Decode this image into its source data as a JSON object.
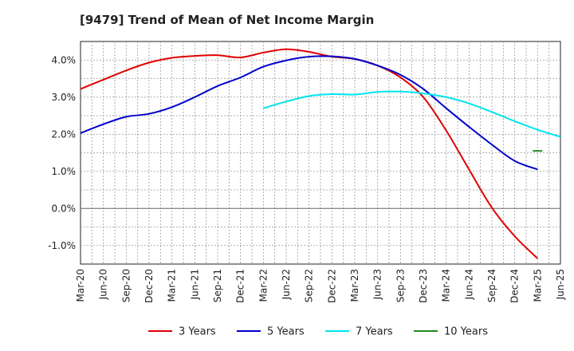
{
  "chart_data": {
    "type": "line",
    "title": "[9479]  Trend of Mean of Net Income Margin",
    "xlabel": "",
    "ylabel": "",
    "ylim": [
      -1.5,
      4.5
    ],
    "yticks": [
      -1.0,
      0.0,
      1.0,
      2.0,
      3.0,
      4.0
    ],
    "ytick_labels": [
      "-1.0%",
      "0.0%",
      "1.0%",
      "2.0%",
      "3.0%",
      "4.0%"
    ],
    "x_tick_labels": [
      "Mar-20",
      "Jun-20",
      "Sep-20",
      "Dec-20",
      "Mar-21",
      "Jun-21",
      "Sep-21",
      "Dec-21",
      "Mar-22",
      "Jun-22",
      "Sep-22",
      "Dec-22",
      "Mar-23",
      "Jun-23",
      "Sep-23",
      "Dec-23",
      "Mar-24",
      "Jun-24",
      "Sep-24",
      "Dec-24",
      "Mar-25",
      "Jun-25"
    ],
    "grid": true,
    "legend_position": "bottom",
    "series": [
      {
        "name": "3 Years",
        "color": "#e00000",
        "start_index": 0,
        "values": [
          3.22,
          3.47,
          3.72,
          3.93,
          4.06,
          4.11,
          4.13,
          4.07,
          4.2,
          4.29,
          4.22,
          4.09,
          4.03,
          3.85,
          3.53,
          3.0,
          2.1,
          1.05,
          0.02,
          -0.75,
          -1.35
        ]
      },
      {
        "name": "5 Years",
        "color": "#0000cc",
        "start_index": 0,
        "values": [
          2.03,
          2.27,
          2.47,
          2.55,
          2.73,
          3.0,
          3.3,
          3.53,
          3.82,
          3.99,
          4.09,
          4.1,
          4.03,
          3.85,
          3.6,
          3.22,
          2.7,
          2.2,
          1.72,
          1.28,
          1.05
        ]
      },
      {
        "name": "7 Years",
        "color": "#00e5ee",
        "start_index": 8,
        "values": [
          2.7,
          2.88,
          3.03,
          3.08,
          3.07,
          3.14,
          3.15,
          3.1,
          3.0,
          2.83,
          2.6,
          2.35,
          2.12,
          1.93
        ]
      },
      {
        "name": "10 Years",
        "color": "#228b22",
        "start_index": 20,
        "values": [
          1.55
        ]
      }
    ]
  }
}
